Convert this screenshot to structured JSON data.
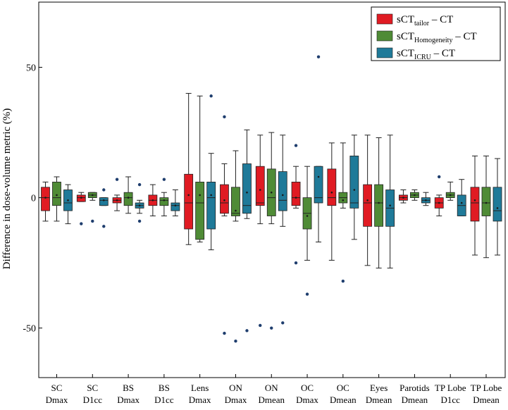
{
  "chart_data": {
    "type": "box",
    "ylabel": "Difference in dose-volume metric (%)",
    "xlabel": "",
    "ylim": [
      -69,
      75
    ],
    "yticks": [
      -50,
      0,
      50
    ],
    "grid": false,
    "legend_position": "top-right",
    "categories": [
      [
        "SC",
        "Dmax"
      ],
      [
        "SC",
        "D1cc"
      ],
      [
        "BS",
        "Dmax"
      ],
      [
        "BS",
        "D1cc"
      ],
      [
        "Lens",
        "Dmax"
      ],
      [
        "ON",
        "Dmax"
      ],
      [
        "ON",
        "Dmean"
      ],
      [
        "OC",
        "Dmax"
      ],
      [
        "OC",
        "Dmean"
      ],
      [
        "Eyes",
        "Dmean"
      ],
      [
        "Parotids",
        "Dmean"
      ],
      [
        "TP Lobe",
        "D1cc"
      ],
      [
        "TP Lobe",
        "Dmean"
      ]
    ],
    "series": [
      {
        "name": "sCT_tailor − CT",
        "legend_main": "sCT",
        "legend_sub": "tailor",
        "legend_suffix": " – CT",
        "color": "#e01b23",
        "boxes": [
          {
            "whislo": -9,
            "q1": -5,
            "med": 0,
            "q3": 4,
            "whishi": 6,
            "mean": 0,
            "fliers": []
          },
          {
            "whislo": -1.5,
            "q1": -1.5,
            "med": 0,
            "q3": 1,
            "whishi": 2,
            "mean": 0,
            "fliers": [
              -10
            ]
          },
          {
            "whislo": -5,
            "q1": -2,
            "med": -1,
            "q3": 0,
            "whishi": 1,
            "mean": -1,
            "fliers": [
              7
            ]
          },
          {
            "whislo": -7,
            "q1": -3,
            "med": -1,
            "q3": 1,
            "whishi": 5,
            "mean": -1,
            "fliers": []
          },
          {
            "whislo": -18,
            "q1": -12,
            "med": -2,
            "q3": 9,
            "whishi": 40,
            "mean": 1,
            "fliers": []
          },
          {
            "whislo": -7,
            "q1": -6,
            "med": -2,
            "q3": 5,
            "whishi": 13,
            "mean": -1,
            "fliers": [
              31,
              -52
            ]
          },
          {
            "whislo": -10,
            "q1": -3,
            "med": -2,
            "q3": 12,
            "whishi": 24,
            "mean": 3,
            "fliers": [
              -49
            ]
          },
          {
            "whislo": -4,
            "q1": -3,
            "med": 0,
            "q3": 6,
            "whishi": 12,
            "mean": 0,
            "fliers": [
              20,
              -25
            ]
          },
          {
            "whislo": -24,
            "q1": -3,
            "med": 0,
            "q3": 11,
            "whishi": 21,
            "mean": 2,
            "fliers": []
          },
          {
            "whislo": -26,
            "q1": -11,
            "med": -2,
            "q3": 5,
            "whishi": 24,
            "mean": -1,
            "fliers": []
          },
          {
            "whislo": -2,
            "q1": -1,
            "med": 0,
            "q3": 1,
            "whishi": 3,
            "mean": 0,
            "fliers": []
          },
          {
            "whislo": -7,
            "q1": -4,
            "med": -2,
            "q3": 0,
            "whishi": 1,
            "mean": -2,
            "fliers": [
              8
            ]
          },
          {
            "whislo": -22,
            "q1": -9,
            "med": -2,
            "q3": 4,
            "whishi": 16,
            "mean": -1,
            "fliers": []
          }
        ]
      },
      {
        "name": "sCT_Homogeneity − CT",
        "legend_main": "sCT",
        "legend_sub": "Homogeneity",
        "legend_suffix": " – CT",
        "color": "#4f8b36",
        "boxes": [
          {
            "whislo": -9,
            "q1": -3,
            "med": 0,
            "q3": 6,
            "whishi": 8,
            "mean": 1,
            "fliers": []
          },
          {
            "whislo": -1,
            "q1": 0,
            "med": 1,
            "q3": 2,
            "whishi": 2,
            "mean": 1,
            "fliers": [
              -9
            ]
          },
          {
            "whislo": -6,
            "q1": -3,
            "med": 0,
            "q3": 2,
            "whishi": 8,
            "mean": 0,
            "fliers": []
          },
          {
            "whislo": -7,
            "q1": -3,
            "med": -1,
            "q3": 0,
            "whishi": 2,
            "mean": -1,
            "fliers": [
              7
            ]
          },
          {
            "whislo": -17,
            "q1": -16,
            "med": -2,
            "q3": 6,
            "whishi": 39,
            "mean": 1,
            "fliers": []
          },
          {
            "whislo": -9,
            "q1": -7,
            "med": -6,
            "q3": 4,
            "whishi": 18,
            "mean": -5,
            "fliers": [
              -55
            ]
          },
          {
            "whislo": -10,
            "q1": -7,
            "med": 0,
            "q3": 11,
            "whishi": 25,
            "mean": 2,
            "fliers": [
              -50
            ]
          },
          {
            "whislo": -24,
            "q1": -12,
            "med": -6,
            "q3": 0,
            "whishi": 12,
            "mean": -7,
            "fliers": [
              -37
            ]
          },
          {
            "whislo": -4,
            "q1": -2,
            "med": 0,
            "q3": 2,
            "whishi": 21,
            "mean": -1,
            "fliers": [
              -32
            ]
          },
          {
            "whislo": -27,
            "q1": -11,
            "med": -2,
            "q3": 5,
            "whishi": 23,
            "mean": -2,
            "fliers": []
          },
          {
            "whislo": -1,
            "q1": 0,
            "med": 1,
            "q3": 2,
            "whishi": 3,
            "mean": 1,
            "fliers": []
          },
          {
            "whislo": -1,
            "q1": 0,
            "med": 1,
            "q3": 2,
            "whishi": 6,
            "mean": 1,
            "fliers": []
          },
          {
            "whislo": -23,
            "q1": -7,
            "med": -2,
            "q3": 4,
            "whishi": 16,
            "mean": -2,
            "fliers": []
          }
        ]
      },
      {
        "name": "sCT_ICRU − CT",
        "legend_main": "sCT",
        "legend_sub": "ICRU",
        "legend_suffix": " – CT",
        "color": "#1f7a99",
        "boxes": [
          {
            "whislo": -10,
            "q1": -5,
            "med": -2,
            "q3": 3,
            "whishi": 5,
            "mean": -1,
            "fliers": []
          },
          {
            "whislo": -3,
            "q1": -3,
            "med": -1,
            "q3": 0,
            "whishi": 0,
            "mean": -1,
            "fliers": [
              3,
              -11
            ]
          },
          {
            "whislo": -6,
            "q1": -4,
            "med": -3,
            "q3": -2,
            "whishi": -1,
            "mean": -3,
            "fliers": [
              5,
              -9
            ]
          },
          {
            "whislo": -7,
            "q1": -5,
            "med": -3,
            "q3": -2,
            "whishi": 3,
            "mean": -3,
            "fliers": []
          },
          {
            "whislo": -20,
            "q1": -12,
            "med": 0,
            "q3": 6,
            "whishi": 17,
            "mean": 1,
            "fliers": [
              39
            ]
          },
          {
            "whislo": -8,
            "q1": -6,
            "med": -3,
            "q3": 13,
            "whishi": 26,
            "mean": 2,
            "fliers": [
              -51
            ]
          },
          {
            "whislo": -11,
            "q1": -5,
            "med": -1,
            "q3": 10,
            "whishi": 24,
            "mean": 1,
            "fliers": [
              -48
            ]
          },
          {
            "whislo": -17,
            "q1": -2,
            "med": 0,
            "q3": 12,
            "whishi": 12,
            "mean": 8,
            "fliers": [
              54
            ]
          },
          {
            "whislo": -16,
            "q1": -4,
            "med": -2,
            "q3": 16,
            "whishi": 24,
            "mean": 3,
            "fliers": []
          },
          {
            "whislo": -27,
            "q1": -11,
            "med": -4,
            "q3": 3,
            "whishi": 24,
            "mean": -3,
            "fliers": []
          },
          {
            "whislo": -3,
            "q1": -2,
            "med": -1,
            "q3": 0,
            "whishi": 2,
            "mean": -1,
            "fliers": []
          },
          {
            "whislo": -7,
            "q1": -7,
            "med": -3,
            "q3": 1,
            "whishi": 7,
            "mean": -2,
            "fliers": []
          },
          {
            "whislo": -22,
            "q1": -9,
            "med": -5,
            "q3": 4,
            "whishi": 15,
            "mean": -4,
            "fliers": []
          }
        ]
      }
    ]
  }
}
